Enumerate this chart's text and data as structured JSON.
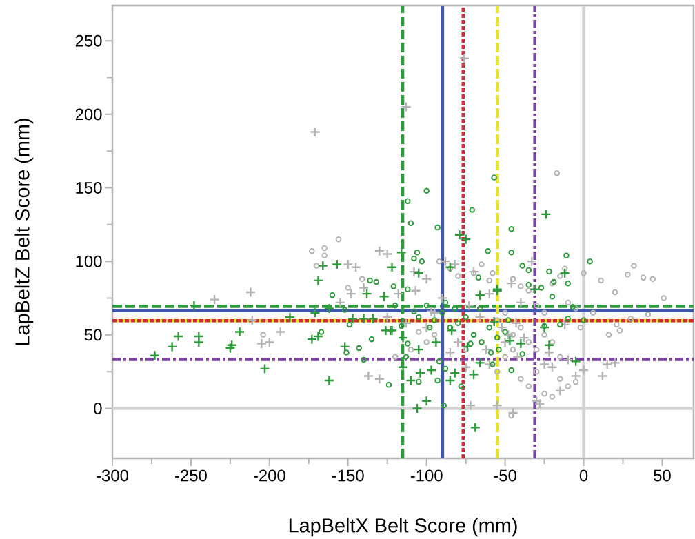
{
  "chart_data": {
    "type": "scatter",
    "xlabel": "LapBeltX Belt Score (mm)",
    "ylabel": "LapBeltZ Belt Score (mm)",
    "xlim": [
      -300,
      70
    ],
    "ylim": [
      -34,
      274
    ],
    "xticks": [
      -300,
      -250,
      -200,
      -150,
      -100,
      -50,
      0,
      50
    ],
    "yticks": [
      0,
      50,
      100,
      150,
      200,
      250
    ],
    "series": [
      {
        "marker": "circle",
        "color": "#b4b4b4",
        "x": [
          -173,
          -165,
          -165,
          -156,
          -170,
          -141,
          -150,
          -204,
          -17,
          0,
          32,
          44,
          38,
          51,
          20,
          11,
          28,
          21,
          23,
          16,
          30,
          41,
          6,
          -2,
          -92,
          -85,
          -80,
          -70,
          -65,
          -60,
          -58,
          -45,
          -40,
          -35,
          -30,
          -25,
          -20,
          -15,
          -12,
          -10,
          -5,
          -40,
          -35,
          -30,
          -25,
          -20,
          -15,
          -10,
          -5,
          -55,
          -50,
          -45,
          -65,
          -70,
          -75,
          -85,
          -95,
          -100,
          -105,
          -110,
          -120,
          -60,
          -55,
          -50,
          -45,
          -40,
          -35,
          -30,
          -25,
          -20,
          -15,
          -46
        ],
        "values": [
          107,
          109,
          104,
          115,
          97,
          88,
          82,
          50,
          160,
          92,
          97,
          88,
          89,
          75,
          79,
          87,
          91,
          57,
          53,
          50,
          61,
          64,
          65,
          55,
          100,
          95,
          90,
          92,
          98,
          87,
          92,
          88,
          83,
          80,
          70,
          65,
          85,
          90,
          95,
          72,
          68,
          20,
          15,
          25,
          10,
          8,
          20,
          15,
          18,
          25,
          35,
          40,
          45,
          50,
          40,
          55,
          50,
          45,
          52,
          40,
          35,
          55,
          60,
          65,
          50,
          55,
          45,
          40,
          50,
          45,
          35,
          -5
        ]
      },
      {
        "marker": "cross",
        "color": "#b4b4b4",
        "x": [
          -171,
          -113,
          -76,
          -235,
          -212,
          -211,
          -200,
          -193,
          -205,
          -150,
          -145,
          -140,
          -130,
          -125,
          -148,
          -155,
          -108,
          -100,
          -88,
          -82,
          -70,
          -60,
          -46,
          -40,
          -33,
          -12,
          -10,
          -5,
          0,
          12,
          15,
          20,
          -20,
          -25,
          -30,
          -28,
          -45,
          -55,
          -72,
          -15,
          -80,
          -100,
          -95,
          -130,
          -137,
          -118,
          -107,
          -125,
          -113,
          -66,
          -52,
          -48,
          -62,
          -43,
          -38,
          -60,
          -75,
          -85,
          -90,
          -97,
          -73,
          -50,
          -42,
          -22
        ],
        "values": [
          188,
          205,
          238,
          74,
          79,
          60,
          45,
          52,
          44,
          98,
          96,
          82,
          107,
          105,
          78,
          72,
          93,
          88,
          100,
          98,
          93,
          78,
          85,
          72,
          100,
          57,
          33,
          22,
          26,
          22,
          30,
          31,
          28,
          30,
          5,
          3,
          -3,
          2,
          2,
          12,
          45,
          55,
          65,
          20,
          22,
          78,
          80,
          62,
          58,
          62,
          55,
          50,
          40,
          58,
          48,
          30,
          28,
          38,
          75,
          66,
          70,
          45,
          35,
          38
        ]
      },
      {
        "marker": "circle",
        "color": "#2e9a3c",
        "x": [
          -112,
          -110,
          -100,
          -93,
          -71,
          -57,
          -46,
          -11,
          4,
          -106,
          -108,
          -103,
          -61,
          -46,
          -39,
          -35,
          -22,
          -19,
          -10,
          -20,
          -27,
          -67,
          -35,
          -121,
          -112,
          -7,
          -10,
          0,
          -89,
          -78,
          -105,
          -93,
          -124,
          -88,
          -46,
          -58,
          -92,
          -39,
          -113,
          -112,
          -116,
          -120,
          -15,
          -25,
          -59,
          -160,
          -152,
          -149,
          -135,
          -143,
          -151,
          -140,
          -167,
          -136,
          -132,
          -100,
          -95,
          -90,
          -85,
          -80,
          -75,
          -70,
          -65,
          -60,
          -55,
          -50,
          -105,
          -98,
          -88,
          -82,
          -108,
          -72,
          -66,
          -54,
          -48
        ],
        "values": [
          141,
          126,
          148,
          123,
          135,
          157,
          122,
          104,
          100,
          106,
          102,
          100,
          107,
          106,
          97,
          94,
          93,
          86,
          85,
          76,
          82,
          89,
          84,
          83,
          81,
          69,
          61,
          60,
          2,
          15,
          18,
          19,
          16,
          27,
          26,
          30,
          32,
          37,
          35,
          44,
          56,
          70,
          57,
          56,
          38,
          77,
          67,
          57,
          47,
          41,
          38,
          33,
          52,
          87,
          86,
          70,
          60,
          65,
          55,
          58,
          62,
          50,
          45,
          55,
          48,
          52,
          62,
          55,
          72,
          68,
          66,
          44,
          68,
          40,
          60
        ]
      },
      {
        "marker": "cross",
        "color": "#2e9a3c",
        "x": [
          -248,
          -166,
          -157,
          -169,
          -187,
          -171,
          -162,
          -273,
          -262,
          -258,
          -245,
          -245,
          -224,
          -225,
          -219,
          -203,
          -173,
          -169,
          -162,
          -152,
          -140,
          -147,
          -134,
          -138,
          -127,
          -126,
          -122,
          -24,
          -12,
          -79,
          -75,
          -116,
          -122,
          -85,
          -105,
          -66,
          -55,
          -31,
          -69,
          -106,
          -100,
          -110,
          -85,
          -104,
          -97,
          -82,
          -70,
          -5,
          -22,
          -25,
          -115,
          -105,
          -94,
          -84,
          -74,
          -66,
          -55,
          -57,
          -47,
          -66,
          -40,
          -123,
          -115
        ],
        "values": [
          70,
          97,
          98,
          87,
          62,
          65,
          68,
          36,
          42,
          49,
          49,
          45,
          43,
          41,
          52,
          27,
          47,
          49,
          19,
          42,
          61,
          61,
          61,
          78,
          76,
          53,
          53,
          132,
          92,
          118,
          115,
          106,
          96,
          96,
          92,
          77,
          81,
          81,
          -13,
          0,
          5,
          19,
          19,
          24,
          26,
          24,
          23,
          32,
          43,
          55,
          28,
          40,
          45,
          53,
          42,
          77,
          80,
          59,
          46,
          31,
          44,
          53,
          48
        ]
      }
    ],
    "ref_lines": [
      {
        "axis": "y",
        "value": 0,
        "color": "#d2d2d2",
        "line_style": "solid"
      },
      {
        "axis": "x",
        "value": 0,
        "color": "#d2d2d2",
        "line_style": "solid"
      },
      {
        "axis": "y",
        "value": 69.4,
        "color": "#2e9a3c",
        "line_style": "dashed"
      },
      {
        "axis": "y",
        "value": 66.6,
        "color": "#3f57ab",
        "line_style": "solid"
      },
      {
        "axis": "y",
        "value": 59.6,
        "color": "#e8e51f",
        "line_style": "solid"
      },
      {
        "axis": "y",
        "value": 59.6,
        "color": "#d42a3c",
        "line_style": "dotted"
      },
      {
        "axis": "y",
        "value": 33.3,
        "color": "#7b43a1",
        "line_style": "dashdot"
      },
      {
        "axis": "x",
        "value": -115.2,
        "color": "#2e9a3c",
        "line_style": "dashed"
      },
      {
        "axis": "x",
        "value": -89.8,
        "color": "#3f57ab",
        "line_style": "solid"
      },
      {
        "axis": "x",
        "value": -76.7,
        "color": "#d42a3c",
        "line_style": "dotted"
      },
      {
        "axis": "x",
        "value": -54.8,
        "color": "#e8e51f",
        "line_style": "dashed"
      },
      {
        "axis": "x",
        "value": -31.1,
        "color": "#7b43a1",
        "line_style": "dashdot"
      }
    ]
  }
}
